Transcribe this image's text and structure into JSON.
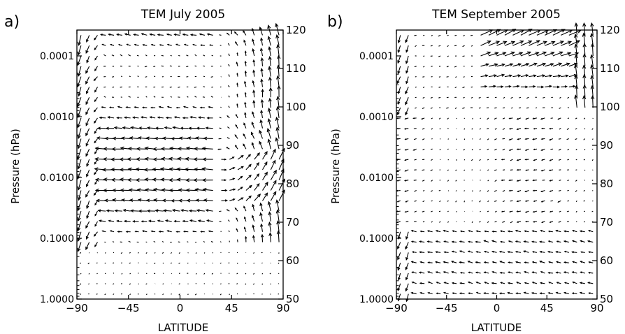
{
  "chart_data": [
    {
      "type": "vector-field",
      "panel_label": "a)",
      "title": "TEM July 2005",
      "xlabel": "LATITUDE",
      "ylabel": "Pressure (hPa)",
      "xlim": [
        -90,
        90
      ],
      "x_ticks": [
        "-90",
        "-45",
        "0",
        "45",
        "90"
      ],
      "y_scale": "log",
      "ylim_pressure": [
        1.0,
        5e-05
      ],
      "y_ticks": [
        "0.0001",
        "0.0010",
        "0.0100",
        "0.1000",
        "1.0000"
      ],
      "y2_label_side": "right",
      "y2_ticks": [
        "120",
        "110",
        "100",
        "90",
        "80",
        "70",
        "60",
        "50"
      ],
      "month": "July"
    },
    {
      "type": "vector-field",
      "panel_label": "b)",
      "title": "TEM September 2005",
      "xlabel": "LATITUDE",
      "ylabel": "Pressure (hPa)",
      "xlim": [
        -90,
        90
      ],
      "x_ticks": [
        "-90",
        "-45",
        "0",
        "45",
        "90"
      ],
      "y_scale": "log",
      "ylim_pressure": [
        1.0,
        5e-05
      ],
      "y_ticks": [
        "0.0001",
        "0.0010",
        "0.0100",
        "0.1000",
        "1.0000"
      ],
      "y2_label_side": "right",
      "y2_ticks": [
        "120",
        "110",
        "100",
        "90",
        "80",
        "70",
        "60",
        "50"
      ],
      "month": "September"
    }
  ]
}
